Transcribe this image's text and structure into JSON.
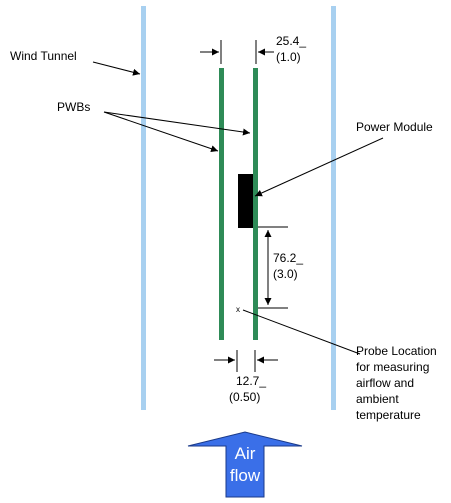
{
  "labels": {
    "wind_tunnel": "Wind Tunnel",
    "pwbs": "PWBs",
    "power_module": "Power Module",
    "probe": [
      "Probe Location",
      "for measuring",
      "airflow and",
      "ambient",
      "temperature"
    ],
    "probe_mark": "x"
  },
  "dimensions": {
    "board_spacing": [
      "25.4_",
      "(1.0)"
    ],
    "module_to_probe": [
      "76.2_",
      "(3.0)"
    ],
    "board_to_probe": [
      "12.7_",
      "(0.50)"
    ]
  },
  "airflow": {
    "line1": "Air",
    "line2": "flow"
  },
  "colors": {
    "tunnel_wall": "#a8d0f0",
    "pwb": "#2e8b57",
    "module": "#000000",
    "arrow_fill": "#3a6fe8",
    "arrow_stroke": "#1a3a8a",
    "arrow_text": "#ffffff"
  }
}
